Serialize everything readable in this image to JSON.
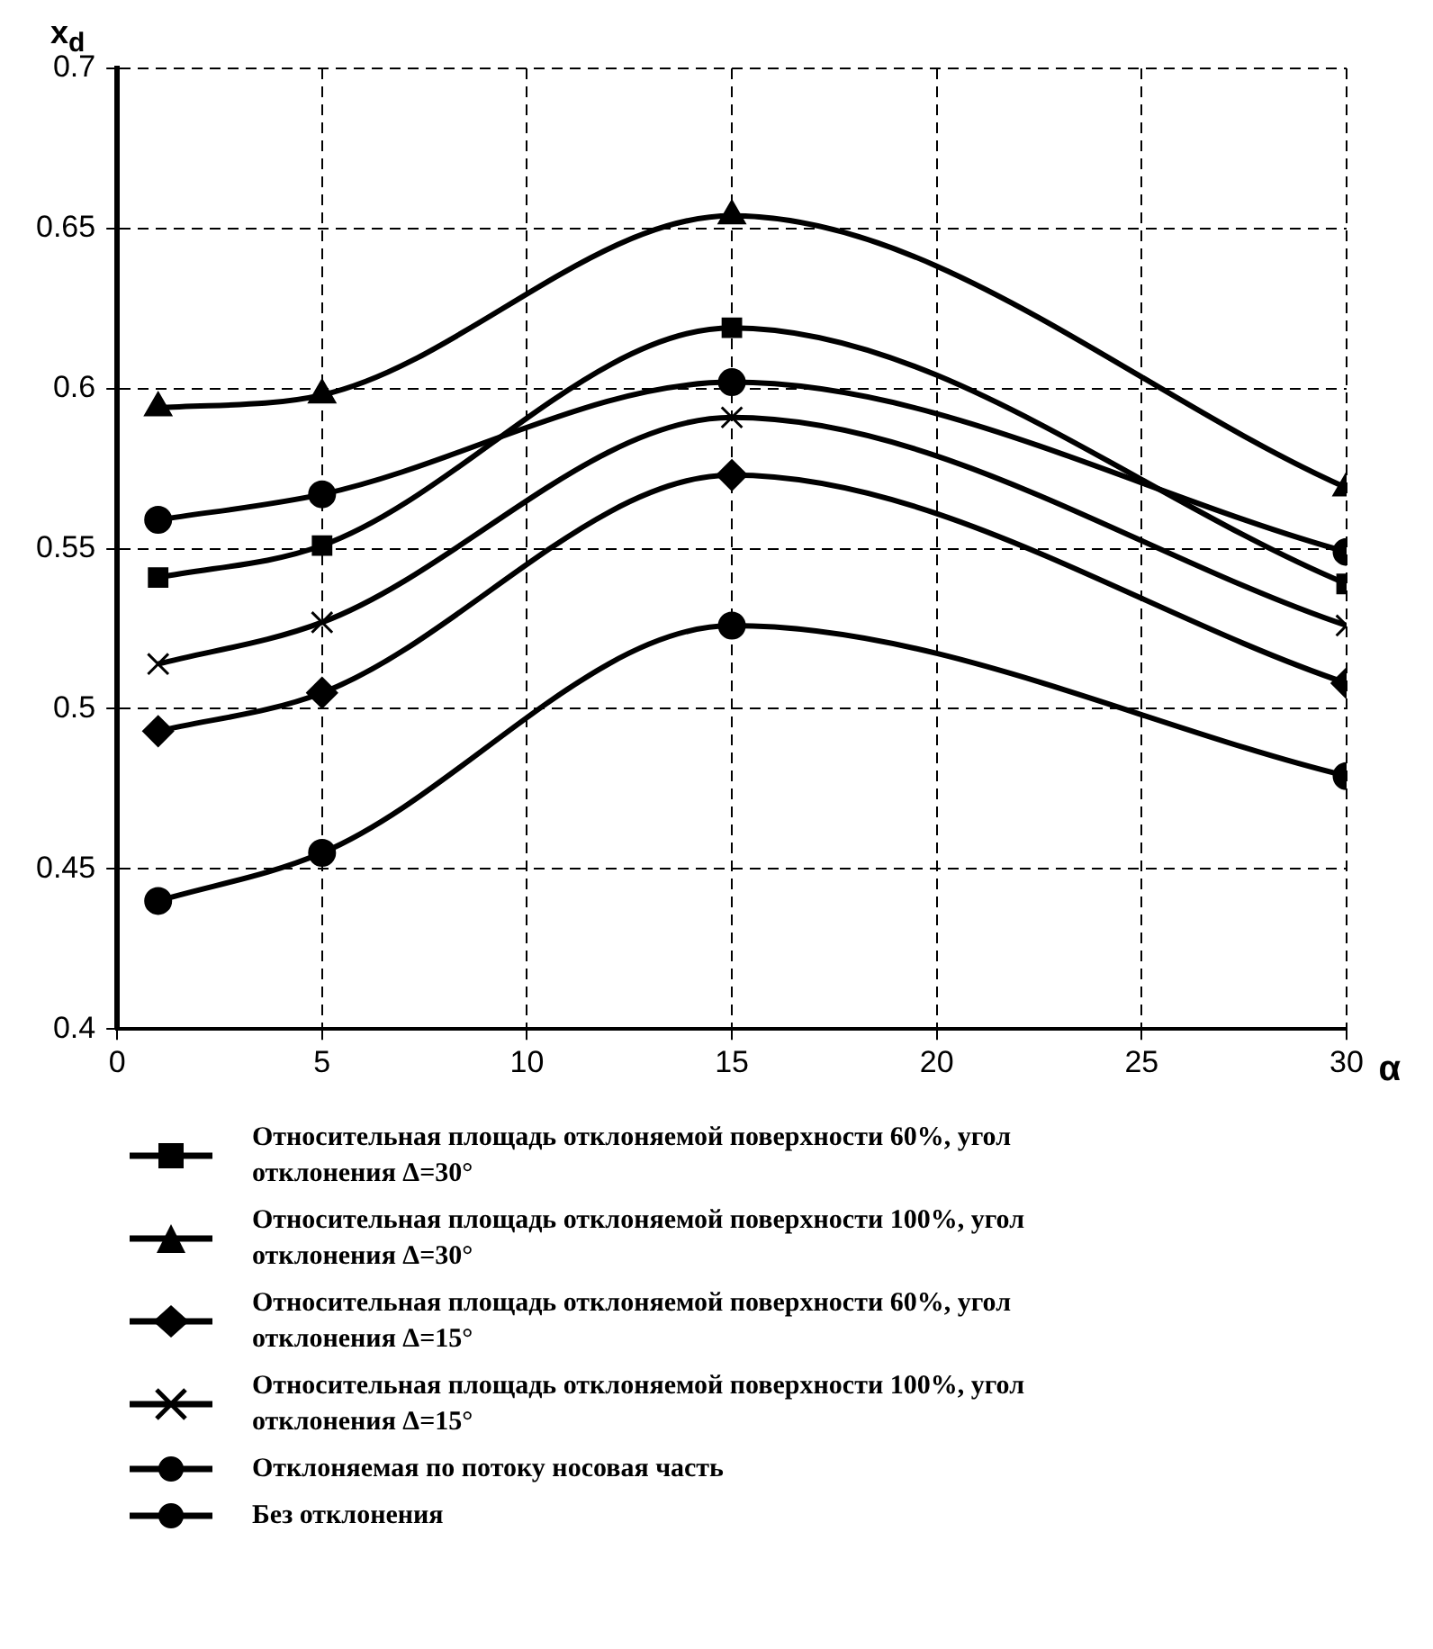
{
  "chart_data": {
    "type": "line",
    "xlabel": "α",
    "ylabel": "x$_{d}$",
    "xlim": [
      0,
      30
    ],
    "xticks": [
      0,
      5,
      10,
      15,
      20,
      25,
      30
    ],
    "ylim": [
      0.4,
      0.7
    ],
    "yticks": [
      0.4,
      0.45,
      0.5,
      0.55,
      0.6,
      0.65,
      0.7
    ],
    "grid": true,
    "legend": "bottom",
    "x": [
      1,
      5,
      15,
      30
    ],
    "series": [
      {
        "name": "Относительная площадь отклоняемой поверхности 60%, угол отклонения Δ=30°",
        "color": "#000000",
        "marker": "square",
        "values": [
          0.541,
          0.551,
          0.619,
          0.539
        ]
      },
      {
        "name": "Относительная площадь отклоняемой поверхности 100%, угол отклонения Δ=30°",
        "color": "#000000",
        "marker": "triangle",
        "values": [
          0.594,
          0.598,
          0.654,
          0.569
        ]
      },
      {
        "name": "Относительная площадь отклоняемой поверхности 60%, угол отклонения Δ=15°",
        "color": "#000000",
        "marker": "diamond",
        "values": [
          0.493,
          0.505,
          0.573,
          0.508
        ]
      },
      {
        "name": "Относительная площадь отклоняемой поверхности 100%, угол отклонения Δ=15°",
        "color": "#000000",
        "marker": "cross",
        "values": [
          0.514,
          0.527,
          0.591,
          0.526
        ]
      },
      {
        "name": "Отклоняемая по потоку носовая часть",
        "color": "#000000",
        "marker": "circle",
        "values": [
          0.559,
          0.567,
          0.602,
          0.549
        ]
      },
      {
        "name": "Без отклонения",
        "color": "#000000",
        "marker": "circle",
        "values": [
          0.44,
          0.455,
          0.526,
          0.479
        ]
      }
    ]
  }
}
